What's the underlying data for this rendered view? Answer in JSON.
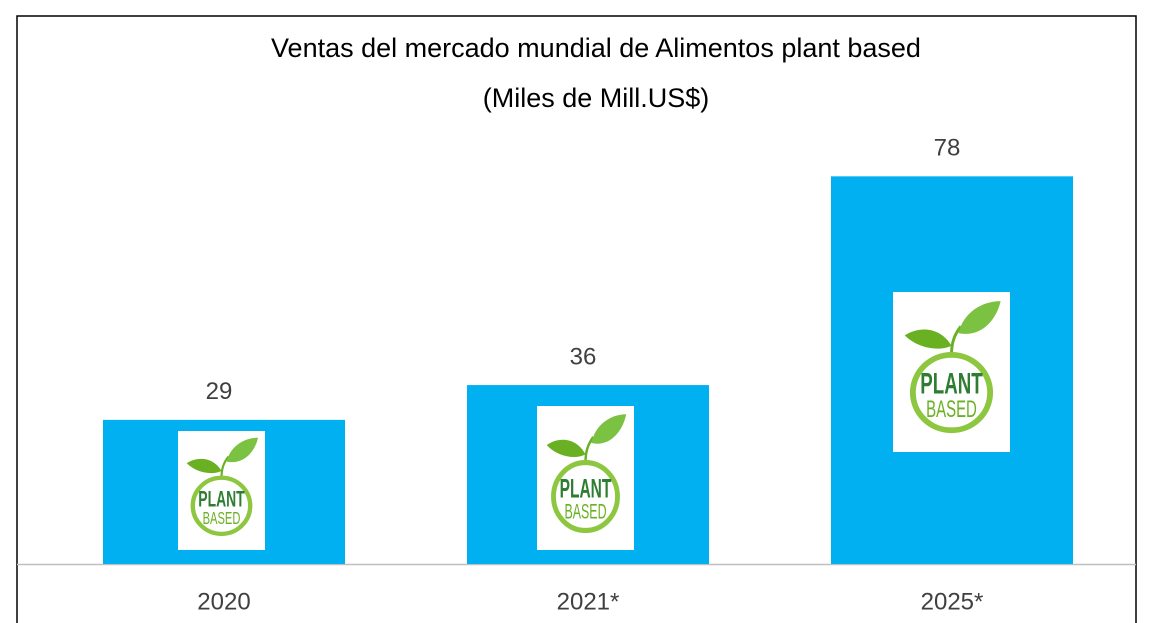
{
  "chart_data": {
    "type": "bar",
    "title": "Ventas del mercado mundial de Alimentos plant based",
    "subtitle": "(Miles de Mill.US$)",
    "categories": [
      "2020",
      "2021*",
      "2025*"
    ],
    "values": [
      29,
      36,
      78
    ],
    "color": "#00b0f0",
    "ylim": [
      0,
      100
    ],
    "grid": false,
    "logo": {
      "line1": "PLANT",
      "line2": "BASED"
    }
  }
}
